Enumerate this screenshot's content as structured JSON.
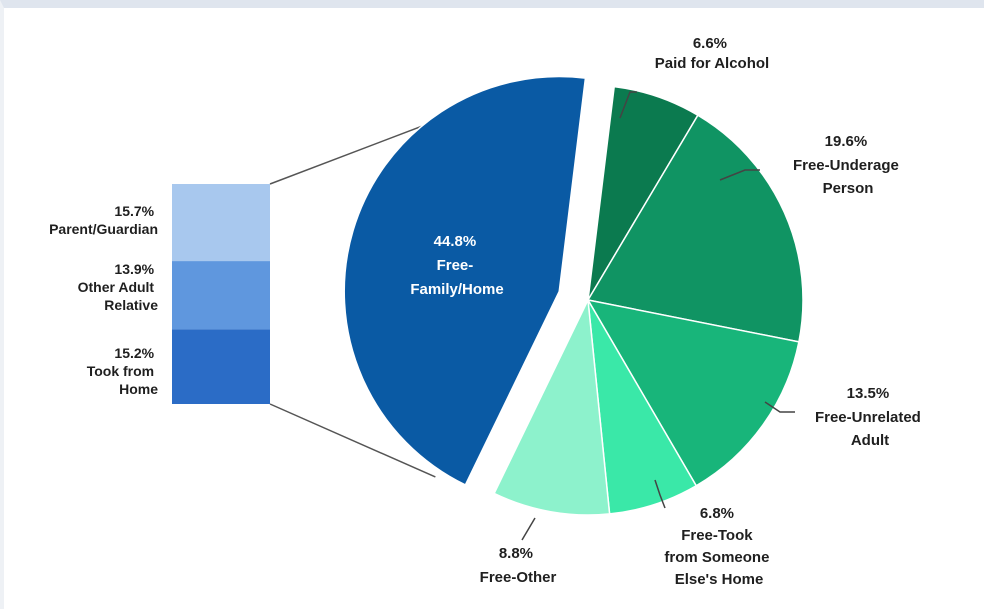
{
  "chart_data": {
    "type": "pie",
    "title": "",
    "slices": [
      {
        "pct": "6.6%",
        "value": 6.6,
        "label": "Paid for Alcohol",
        "color": "#0b7a4f"
      },
      {
        "pct": "19.6%",
        "value": 19.6,
        "label": "Free-Underage Person",
        "color": "#109463"
      },
      {
        "pct": "13.5%",
        "value": 13.5,
        "label": "Free-Unrelated Adult",
        "color": "#18b57a"
      },
      {
        "pct": "6.8%",
        "value": 6.8,
        "label": "Free-Took from Someone Else's Home",
        "color": "#3ae8a8"
      },
      {
        "pct": "8.8%",
        "value": 8.8,
        "label": "Free-Other",
        "color": "#8df2cc"
      },
      {
        "pct": "44.8%",
        "value": 44.8,
        "label": "Free-Family/Home",
        "color": "#0a5aa4",
        "exploded": true
      }
    ],
    "breakdown": {
      "of": "Free-Family/Home",
      "segments": [
        {
          "pct": "15.7%",
          "value": 15.7,
          "label": "Parent/Guardian",
          "color": "#a8c8ee"
        },
        {
          "pct": "13.9%",
          "value": 13.9,
          "label": "Other Adult Relative",
          "color": "#5f97de"
        },
        {
          "pct": "15.2%",
          "value": 15.2,
          "label": "Took from Home",
          "color": "#2b6cc6"
        }
      ]
    }
  }
}
